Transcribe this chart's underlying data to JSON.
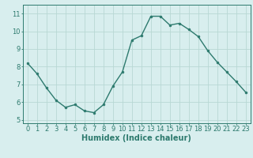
{
  "x": [
    0,
    1,
    2,
    3,
    4,
    5,
    6,
    7,
    8,
    9,
    10,
    11,
    12,
    13,
    14,
    15,
    16,
    17,
    18,
    19,
    20,
    21,
    22,
    23
  ],
  "y": [
    8.2,
    7.6,
    6.8,
    6.1,
    5.7,
    5.85,
    5.5,
    5.4,
    5.85,
    6.9,
    7.7,
    9.5,
    9.75,
    10.85,
    10.85,
    10.35,
    10.45,
    10.1,
    9.7,
    8.9,
    8.25,
    7.7,
    7.15,
    6.55
  ],
  "line_color": "#2d7a6e",
  "marker": "o",
  "marker_size": 2.0,
  "line_width": 1.0,
  "bg_color": "#d8eeee",
  "grid_color": "#b8d8d4",
  "xlabel": "Humidex (Indice chaleur)",
  "xlabel_fontsize": 7,
  "ylabel_ticks": [
    5,
    6,
    7,
    8,
    9,
    10,
    11
  ],
  "xtick_labels": [
    "0",
    "1",
    "2",
    "3",
    "4",
    "5",
    "6",
    "7",
    "8",
    "9",
    "10",
    "11",
    "12",
    "13",
    "14",
    "15",
    "16",
    "17",
    "18",
    "19",
    "20",
    "21",
    "22",
    "23"
  ],
  "ylim": [
    4.8,
    11.5
  ],
  "xlim": [
    -0.5,
    23.5
  ],
  "tick_color": "#2d7a6e",
  "tick_fontsize": 6,
  "spine_color": "#2d7a6e"
}
